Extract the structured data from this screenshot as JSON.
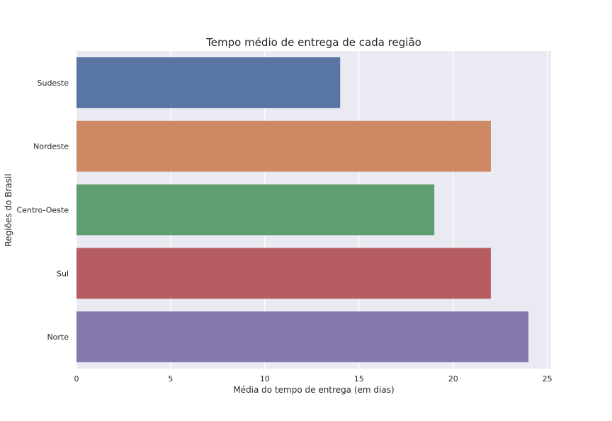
{
  "chart_data": {
    "type": "bar",
    "orientation": "horizontal",
    "title": "Tempo médio de entrega de cada região",
    "xlabel": "Média do tempo de entrega (em dias)",
    "ylabel": "Regiões do Brasil",
    "categories": [
      "Sudeste",
      "Nordeste",
      "Centro-Oeste",
      "Sul",
      "Norte"
    ],
    "values": [
      14,
      22,
      19,
      22,
      24
    ],
    "colors": [
      "#5975a4",
      "#cc8963",
      "#5f9e6e",
      "#b55d60",
      "#857aab"
    ],
    "xlim": [
      0,
      25.2
    ],
    "xticks": [
      0,
      5,
      10,
      15,
      20,
      25
    ],
    "grid": true,
    "background": "#eaeaf2"
  }
}
